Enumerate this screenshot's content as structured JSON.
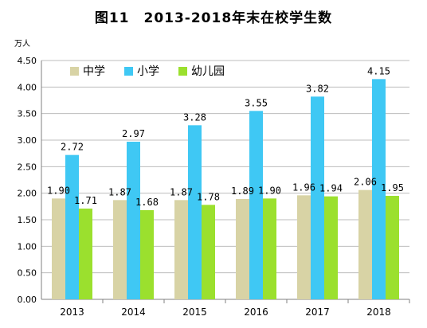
{
  "chart_data": {
    "type": "bar",
    "title": "图11　2013-2018年末在校学生数",
    "unit": "万人",
    "categories": [
      "2013",
      "2014",
      "2015",
      "2016",
      "2017",
      "2018"
    ],
    "series": [
      {
        "name": "中学",
        "color": "#d8d3a5",
        "values": [
          1.9,
          1.87,
          1.87,
          1.89,
          1.96,
          2.06
        ],
        "labels": [
          "1.90",
          "1.87",
          "1.87",
          "1.89",
          "1.96",
          "2.06"
        ]
      },
      {
        "name": "小学",
        "color": "#3fc8f4",
        "values": [
          2.72,
          2.97,
          3.28,
          3.55,
          3.82,
          4.15
        ],
        "labels": [
          "2.72",
          "2.97",
          "3.28",
          "3.55",
          "3.82",
          "4.15"
        ]
      },
      {
        "name": "幼儿园",
        "color": "#9be02e",
        "values": [
          1.71,
          1.68,
          1.78,
          1.9,
          1.94,
          1.95
        ],
        "labels": [
          "1.71",
          "1.68",
          "1.78",
          "1.90",
          "1.94",
          "1.95"
        ]
      }
    ],
    "ylim": [
      0,
      4.5
    ],
    "yticks": [
      "0.00",
      "0.50",
      "1.00",
      "1.50",
      "2.00",
      "2.50",
      "3.00",
      "3.50",
      "4.00",
      "4.50"
    ],
    "grid": true,
    "legend_position": "top-left"
  }
}
